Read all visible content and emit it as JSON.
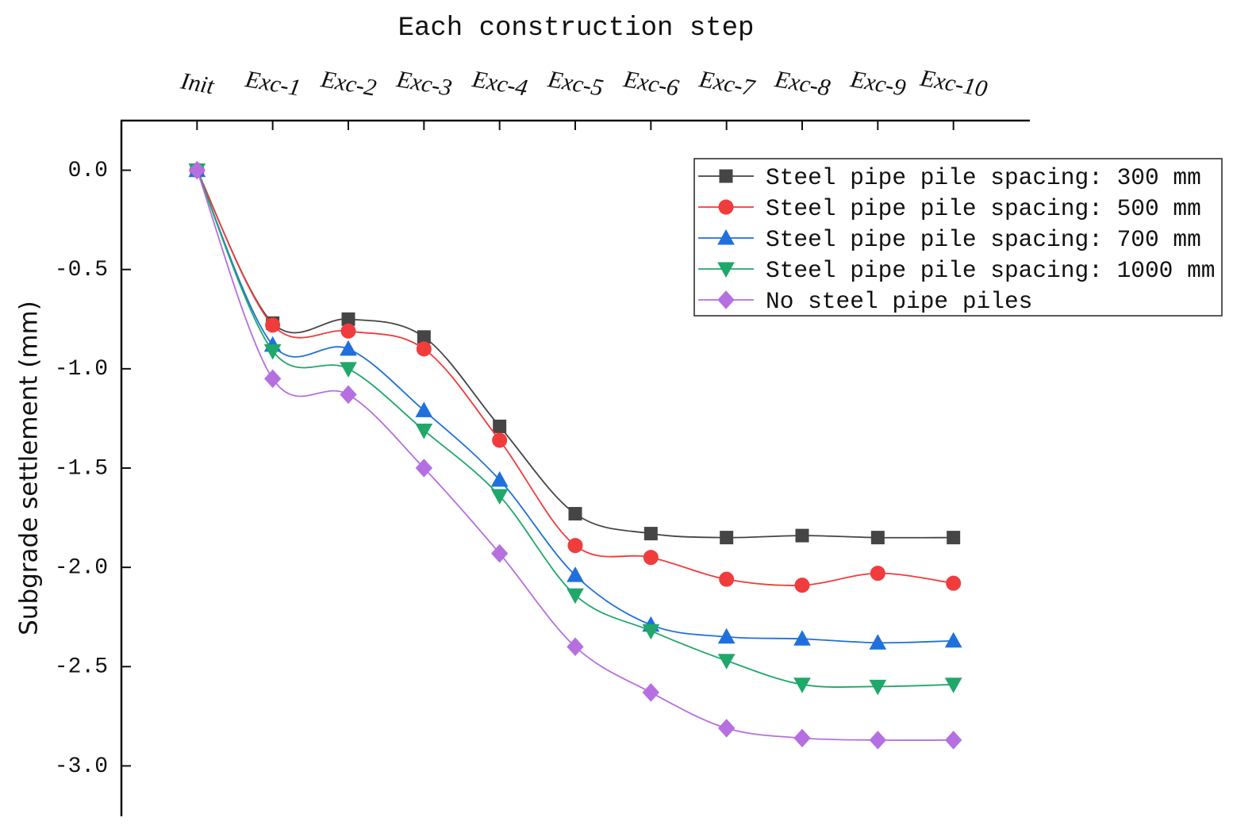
{
  "chart_data": {
    "type": "line",
    "title": "Each construction step",
    "y_label": "Subgrade settlement (mm)",
    "categories": [
      "Init",
      "Exc-1",
      "Exc-2",
      "Exc-3",
      "Exc-4",
      "Exc-5",
      "Exc-6",
      "Exc-7",
      "Exc-8",
      "Exc-9",
      "Exc-10"
    ],
    "series": [
      {
        "name": "Steel pipe pile spacing: 300 mm",
        "color": "#454545",
        "marker": "square",
        "values": [
          0,
          -0.77,
          -0.75,
          -0.84,
          -1.29,
          -1.73,
          -1.83,
          -1.85,
          -1.84,
          -1.85,
          -1.85
        ]
      },
      {
        "name": "Steel pipe pile spacing: 500 mm",
        "color": "#f03c3c",
        "marker": "circle",
        "values": [
          0,
          -0.78,
          -0.81,
          -0.9,
          -1.36,
          -1.89,
          -1.95,
          -2.06,
          -2.09,
          -2.03,
          -2.08
        ]
      },
      {
        "name": "Steel pipe pile spacing: 700 mm",
        "color": "#1f70dc",
        "marker": "triangle-up",
        "values": [
          0,
          -0.88,
          -0.9,
          -1.21,
          -1.56,
          -2.04,
          -2.29,
          -2.35,
          -2.36,
          -2.38,
          -2.37
        ]
      },
      {
        "name": "Steel pipe pile spacing: 1000 mm",
        "color": "#1fa86a",
        "marker": "triangle-down",
        "values": [
          0,
          -0.91,
          -1.0,
          -1.31,
          -1.64,
          -2.14,
          -2.32,
          -2.47,
          -2.59,
          -2.6,
          -2.59
        ]
      },
      {
        "name": "No steel pipe piles",
        "color": "#b66fe0",
        "marker": "diamond",
        "values": [
          0,
          -1.05,
          -1.13,
          -1.5,
          -1.93,
          -2.4,
          -2.63,
          -2.81,
          -2.86,
          -2.87,
          -2.87
        ]
      }
    ],
    "ylim": [
      -3.25,
      0.25
    ],
    "yticks": [
      {
        "value": 0,
        "label": "0.0"
      },
      {
        "value": -0.5,
        "label": "-0.5"
      },
      {
        "value": -1,
        "label": "-1.0"
      },
      {
        "value": -1.5,
        "label": "-1.5"
      },
      {
        "value": -2,
        "label": "-2.0"
      },
      {
        "value": -2.5,
        "label": "-2.5"
      },
      {
        "value": -3,
        "label": "-3.0"
      }
    ],
    "legend": "upper right"
  }
}
